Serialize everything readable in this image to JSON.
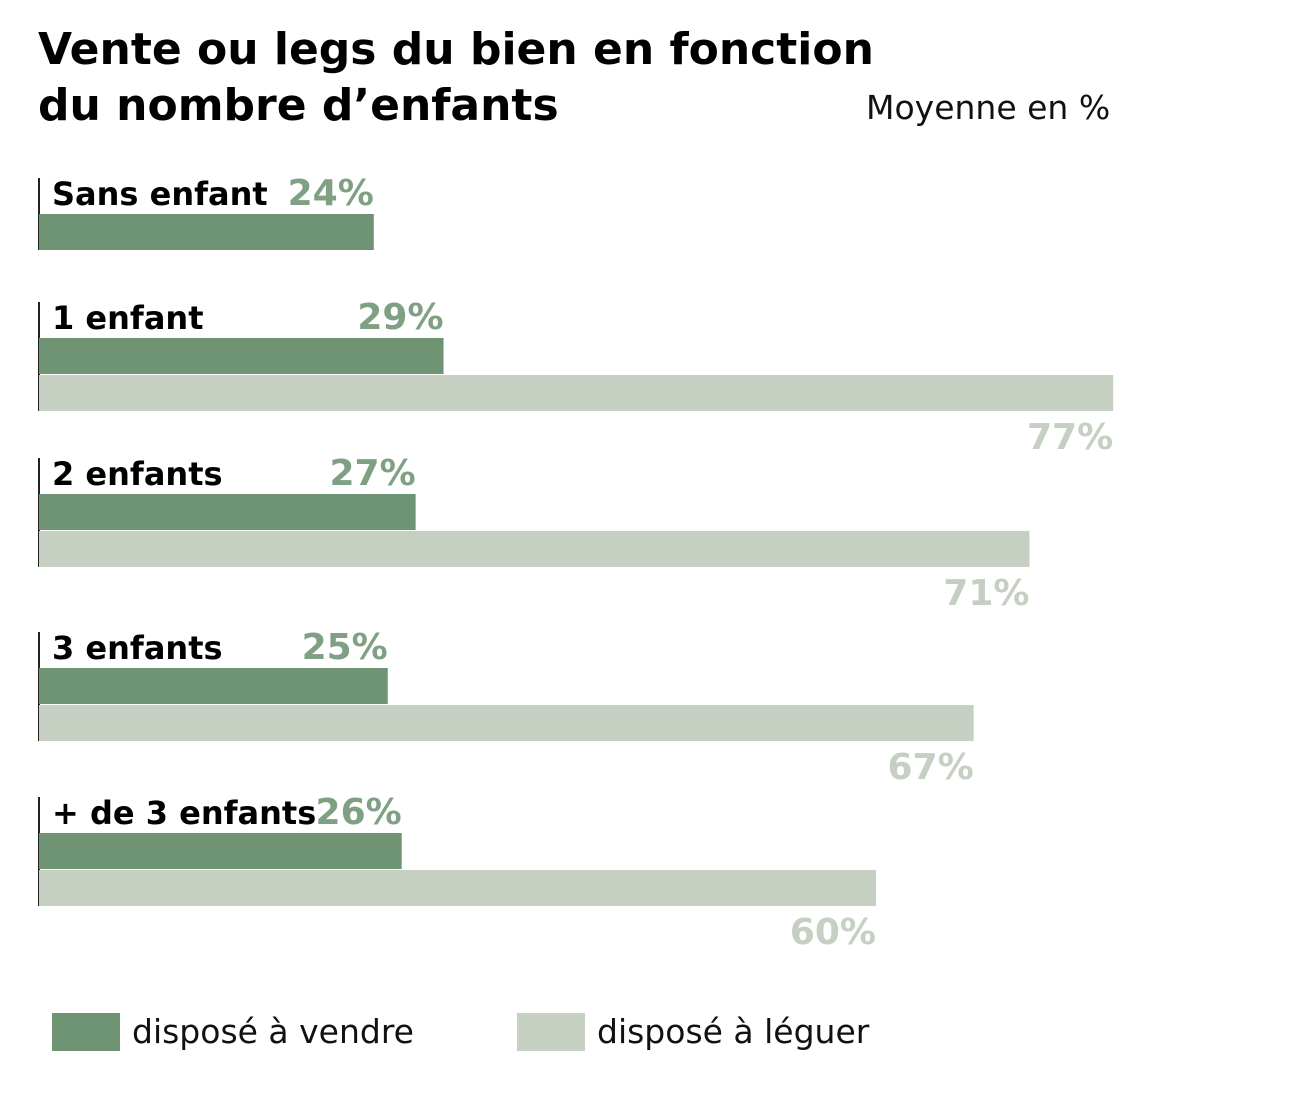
{
  "chart_data": {
    "type": "bar",
    "orientation": "horizontal",
    "title_lines": [
      "Vente ou legs du bien en fonction",
      "du nombre d’enfants"
    ],
    "subtitle": "Moyenne en %",
    "categories": [
      "Sans enfant",
      "1 enfant",
      "2 enfants",
      "3 enfants",
      "+ de 3 enfants"
    ],
    "series": [
      {
        "name": "disposé à vendre",
        "color": "#6e9473",
        "label_color": "#80a083",
        "values": [
          24,
          29,
          27,
          25,
          26
        ]
      },
      {
        "name": "disposé à léguer",
        "color": "#c5cfc2",
        "label_color": "#c5cfc2",
        "values": [
          null,
          77,
          71,
          67,
          60
        ]
      }
    ],
    "value_suffix": "%",
    "legend_position": "bottom",
    "grid": false
  }
}
